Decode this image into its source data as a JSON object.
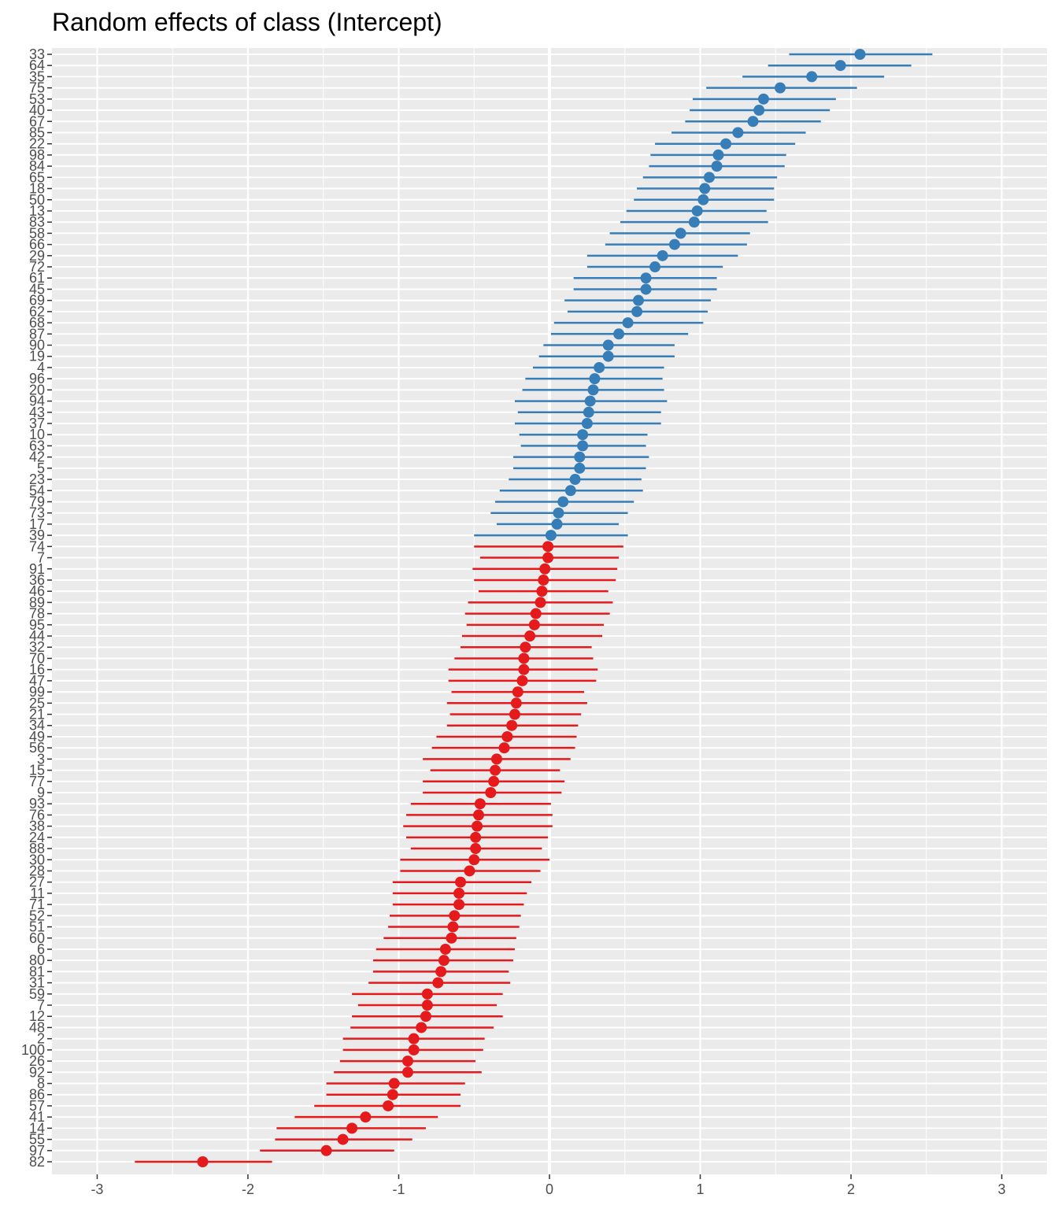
{
  "chart_data": {
    "type": "scatter",
    "title": "Random effects of class (Intercept)",
    "xlabel": "",
    "ylabel": "",
    "xlim": [
      -3.3,
      3.3
    ],
    "x_ticks": [
      -3,
      -2,
      -1,
      0,
      1,
      2,
      3
    ],
    "grid": true,
    "legend": "none",
    "colors": {
      "positive": "#377eb8",
      "negative": "#e41a1c",
      "panel_bg": "#ebebeb",
      "grid": "#ffffff"
    },
    "points": [
      {
        "label": "33",
        "estimate": 2.06,
        "lower": 1.59,
        "upper": 2.54
      },
      {
        "label": "64",
        "estimate": 1.93,
        "lower": 1.45,
        "upper": 2.4
      },
      {
        "label": "35",
        "estimate": 1.74,
        "lower": 1.28,
        "upper": 2.22
      },
      {
        "label": "75",
        "estimate": 1.53,
        "lower": 1.04,
        "upper": 2.04
      },
      {
        "label": "53",
        "estimate": 1.42,
        "lower": 0.95,
        "upper": 1.9
      },
      {
        "label": "40",
        "estimate": 1.39,
        "lower": 0.93,
        "upper": 1.86
      },
      {
        "label": "67",
        "estimate": 1.35,
        "lower": 0.9,
        "upper": 1.8
      },
      {
        "label": "85",
        "estimate": 1.25,
        "lower": 0.81,
        "upper": 1.7
      },
      {
        "label": "22",
        "estimate": 1.17,
        "lower": 0.7,
        "upper": 1.63
      },
      {
        "label": "98",
        "estimate": 1.12,
        "lower": 0.67,
        "upper": 1.57
      },
      {
        "label": "84",
        "estimate": 1.11,
        "lower": 0.66,
        "upper": 1.56
      },
      {
        "label": "65",
        "estimate": 1.06,
        "lower": 0.62,
        "upper": 1.51
      },
      {
        "label": "18",
        "estimate": 1.03,
        "lower": 0.58,
        "upper": 1.49
      },
      {
        "label": "50",
        "estimate": 1.02,
        "lower": 0.56,
        "upper": 1.49
      },
      {
        "label": "13",
        "estimate": 0.98,
        "lower": 0.51,
        "upper": 1.44
      },
      {
        "label": "83",
        "estimate": 0.96,
        "lower": 0.47,
        "upper": 1.45
      },
      {
        "label": "58",
        "estimate": 0.87,
        "lower": 0.4,
        "upper": 1.33
      },
      {
        "label": "66",
        "estimate": 0.83,
        "lower": 0.37,
        "upper": 1.31
      },
      {
        "label": "29",
        "estimate": 0.75,
        "lower": 0.25,
        "upper": 1.25
      },
      {
        "label": "72",
        "estimate": 0.7,
        "lower": 0.25,
        "upper": 1.15
      },
      {
        "label": "61",
        "estimate": 0.64,
        "lower": 0.16,
        "upper": 1.11
      },
      {
        "label": "45",
        "estimate": 0.64,
        "lower": 0.16,
        "upper": 1.11
      },
      {
        "label": "69",
        "estimate": 0.59,
        "lower": 0.1,
        "upper": 1.07
      },
      {
        "label": "62",
        "estimate": 0.58,
        "lower": 0.12,
        "upper": 1.05
      },
      {
        "label": "68",
        "estimate": 0.52,
        "lower": 0.03,
        "upper": 1.02
      },
      {
        "label": "87",
        "estimate": 0.46,
        "lower": 0.01,
        "upper": 0.92
      },
      {
        "label": "90",
        "estimate": 0.39,
        "lower": -0.04,
        "upper": 0.83
      },
      {
        "label": "19",
        "estimate": 0.39,
        "lower": -0.07,
        "upper": 0.83
      },
      {
        "label": "4",
        "estimate": 0.33,
        "lower": -0.11,
        "upper": 0.76
      },
      {
        "label": "96",
        "estimate": 0.3,
        "lower": -0.16,
        "upper": 0.75
      },
      {
        "label": "20",
        "estimate": 0.29,
        "lower": -0.18,
        "upper": 0.76
      },
      {
        "label": "94",
        "estimate": 0.27,
        "lower": -0.23,
        "upper": 0.78
      },
      {
        "label": "43",
        "estimate": 0.26,
        "lower": -0.21,
        "upper": 0.74
      },
      {
        "label": "37",
        "estimate": 0.25,
        "lower": -0.23,
        "upper": 0.74
      },
      {
        "label": "10",
        "estimate": 0.22,
        "lower": -0.2,
        "upper": 0.65
      },
      {
        "label": "63",
        "estimate": 0.22,
        "lower": -0.19,
        "upper": 0.64
      },
      {
        "label": "42",
        "estimate": 0.2,
        "lower": -0.24,
        "upper": 0.66
      },
      {
        "label": "5",
        "estimate": 0.2,
        "lower": -0.24,
        "upper": 0.64
      },
      {
        "label": "23",
        "estimate": 0.17,
        "lower": -0.27,
        "upper": 0.61
      },
      {
        "label": "54",
        "estimate": 0.14,
        "lower": -0.33,
        "upper": 0.62
      },
      {
        "label": "79",
        "estimate": 0.09,
        "lower": -0.36,
        "upper": 0.56
      },
      {
        "label": "73",
        "estimate": 0.06,
        "lower": -0.39,
        "upper": 0.52
      },
      {
        "label": "17",
        "estimate": 0.05,
        "lower": -0.35,
        "upper": 0.46
      },
      {
        "label": "39",
        "estimate": 0.01,
        "lower": -0.5,
        "upper": 0.52
      },
      {
        "label": "74",
        "estimate": -0.01,
        "lower": -0.5,
        "upper": 0.49
      },
      {
        "label": "7",
        "estimate": -0.01,
        "lower": -0.46,
        "upper": 0.46
      },
      {
        "label": "91",
        "estimate": -0.03,
        "lower": -0.51,
        "upper": 0.45
      },
      {
        "label": "36",
        "estimate": -0.04,
        "lower": -0.5,
        "upper": 0.44
      },
      {
        "label": "46",
        "estimate": -0.05,
        "lower": -0.47,
        "upper": 0.39
      },
      {
        "label": "89",
        "estimate": -0.06,
        "lower": -0.54,
        "upper": 0.42
      },
      {
        "label": "78",
        "estimate": -0.09,
        "lower": -0.56,
        "upper": 0.4
      },
      {
        "label": "95",
        "estimate": -0.1,
        "lower": -0.55,
        "upper": 0.36
      },
      {
        "label": "44",
        "estimate": -0.13,
        "lower": -0.58,
        "upper": 0.35
      },
      {
        "label": "32",
        "estimate": -0.16,
        "lower": -0.59,
        "upper": 0.28
      },
      {
        "label": "70",
        "estimate": -0.17,
        "lower": -0.63,
        "upper": 0.29
      },
      {
        "label": "16",
        "estimate": -0.17,
        "lower": -0.67,
        "upper": 0.32
      },
      {
        "label": "47",
        "estimate": -0.18,
        "lower": -0.67,
        "upper": 0.31
      },
      {
        "label": "99",
        "estimate": -0.21,
        "lower": -0.65,
        "upper": 0.23
      },
      {
        "label": "25",
        "estimate": -0.22,
        "lower": -0.68,
        "upper": 0.25
      },
      {
        "label": "21",
        "estimate": -0.23,
        "lower": -0.66,
        "upper": 0.21
      },
      {
        "label": "34",
        "estimate": -0.25,
        "lower": -0.68,
        "upper": 0.19
      },
      {
        "label": "49",
        "estimate": -0.28,
        "lower": -0.75,
        "upper": 0.18
      },
      {
        "label": "56",
        "estimate": -0.3,
        "lower": -0.78,
        "upper": 0.17
      },
      {
        "label": "3",
        "estimate": -0.35,
        "lower": -0.84,
        "upper": 0.14
      },
      {
        "label": "15",
        "estimate": -0.36,
        "lower": -0.79,
        "upper": 0.07
      },
      {
        "label": "77",
        "estimate": -0.37,
        "lower": -0.84,
        "upper": 0.1
      },
      {
        "label": "9",
        "estimate": -0.39,
        "lower": -0.84,
        "upper": 0.08
      },
      {
        "label": "93",
        "estimate": -0.46,
        "lower": -0.92,
        "upper": 0.01
      },
      {
        "label": "76",
        "estimate": -0.47,
        "lower": -0.95,
        "upper": 0.02
      },
      {
        "label": "38",
        "estimate": -0.48,
        "lower": -0.97,
        "upper": 0.02
      },
      {
        "label": "24",
        "estimate": -0.49,
        "lower": -0.95,
        "upper": -0.01
      },
      {
        "label": "88",
        "estimate": -0.49,
        "lower": -0.92,
        "upper": -0.05
      },
      {
        "label": "30",
        "estimate": -0.5,
        "lower": -0.99,
        "upper": 0.0
      },
      {
        "label": "28",
        "estimate": -0.53,
        "lower": -0.99,
        "upper": -0.06
      },
      {
        "label": "27",
        "estimate": -0.59,
        "lower": -1.04,
        "upper": -0.12
      },
      {
        "label": "11",
        "estimate": -0.6,
        "lower": -1.04,
        "upper": -0.15
      },
      {
        "label": "71",
        "estimate": -0.6,
        "lower": -1.04,
        "upper": -0.17
      },
      {
        "label": "52",
        "estimate": -0.63,
        "lower": -1.06,
        "upper": -0.19
      },
      {
        "label": "51",
        "estimate": -0.64,
        "lower": -1.07,
        "upper": -0.2
      },
      {
        "label": "60",
        "estimate": -0.65,
        "lower": -1.1,
        "upper": -0.22
      },
      {
        "label": "6",
        "estimate": -0.69,
        "lower": -1.15,
        "upper": -0.23
      },
      {
        "label": "80",
        "estimate": -0.7,
        "lower": -1.17,
        "upper": -0.24
      },
      {
        "label": "81",
        "estimate": -0.72,
        "lower": -1.17,
        "upper": -0.27
      },
      {
        "label": "31",
        "estimate": -0.74,
        "lower": -1.2,
        "upper": -0.26
      },
      {
        "label": "59",
        "estimate": -0.81,
        "lower": -1.31,
        "upper": -0.31
      },
      {
        "label": "7",
        "estimate": -0.81,
        "lower": -1.27,
        "upper": -0.35
      },
      {
        "label": "12",
        "estimate": -0.82,
        "lower": -1.31,
        "upper": -0.31
      },
      {
        "label": "48",
        "estimate": -0.85,
        "lower": -1.32,
        "upper": -0.37
      },
      {
        "label": "2",
        "estimate": -0.9,
        "lower": -1.37,
        "upper": -0.43
      },
      {
        "label": "100",
        "estimate": -0.9,
        "lower": -1.37,
        "upper": -0.44
      },
      {
        "label": "26",
        "estimate": -0.94,
        "lower": -1.39,
        "upper": -0.49
      },
      {
        "label": "92",
        "estimate": -0.94,
        "lower": -1.43,
        "upper": -0.45
      },
      {
        "label": "8",
        "estimate": -1.03,
        "lower": -1.48,
        "upper": -0.56
      },
      {
        "label": "86",
        "estimate": -1.04,
        "lower": -1.48,
        "upper": -0.59
      },
      {
        "label": "57",
        "estimate": -1.07,
        "lower": -1.56,
        "upper": -0.59
      },
      {
        "label": "41",
        "estimate": -1.22,
        "lower": -1.69,
        "upper": -0.74
      },
      {
        "label": "14",
        "estimate": -1.31,
        "lower": -1.81,
        "upper": -0.82
      },
      {
        "label": "55",
        "estimate": -1.37,
        "lower": -1.82,
        "upper": -0.91
      },
      {
        "label": "97",
        "estimate": -1.48,
        "lower": -1.92,
        "upper": -1.03
      },
      {
        "label": "82",
        "estimate": -2.3,
        "lower": -2.75,
        "upper": -1.84
      }
    ]
  }
}
